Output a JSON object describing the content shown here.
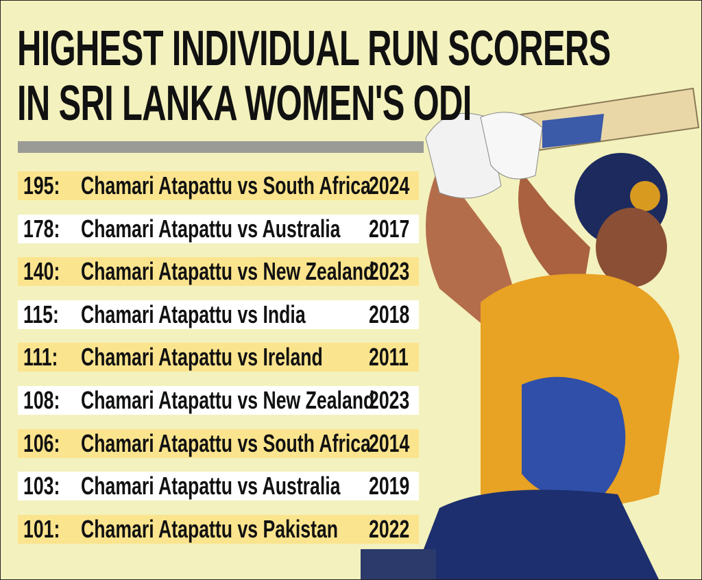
{
  "header": {
    "title": [
      "HIGHEST INDIVIDUAL RUN SCORERS",
      "IN SRI LANKA WOMEN'S ODI"
    ]
  },
  "table": {
    "rows": [
      [
        "195:",
        "Chamari Atapattu vs South Africa",
        "2024"
      ],
      [
        "178:",
        "Chamari Atapattu vs Australia",
        "2017"
      ],
      [
        "140:",
        "Chamari Atapattu vs New Zealand",
        "2023"
      ],
      [
        "115:",
        "Chamari Atapattu vs India",
        "2018"
      ],
      [
        "111:",
        "Chamari Atapattu vs Ireland",
        "2011"
      ],
      [
        "108:",
        "Chamari Atapattu vs New Zealand",
        "2023"
      ],
      [
        "106:",
        "Chamari Atapattu vs South Africa",
        "2014"
      ],
      [
        "103:",
        "Chamari Atapattu vs Australia",
        "2019"
      ],
      [
        "101:",
        "Chamari Atapattu vs Pakistan",
        "2022"
      ]
    ]
  }
}
